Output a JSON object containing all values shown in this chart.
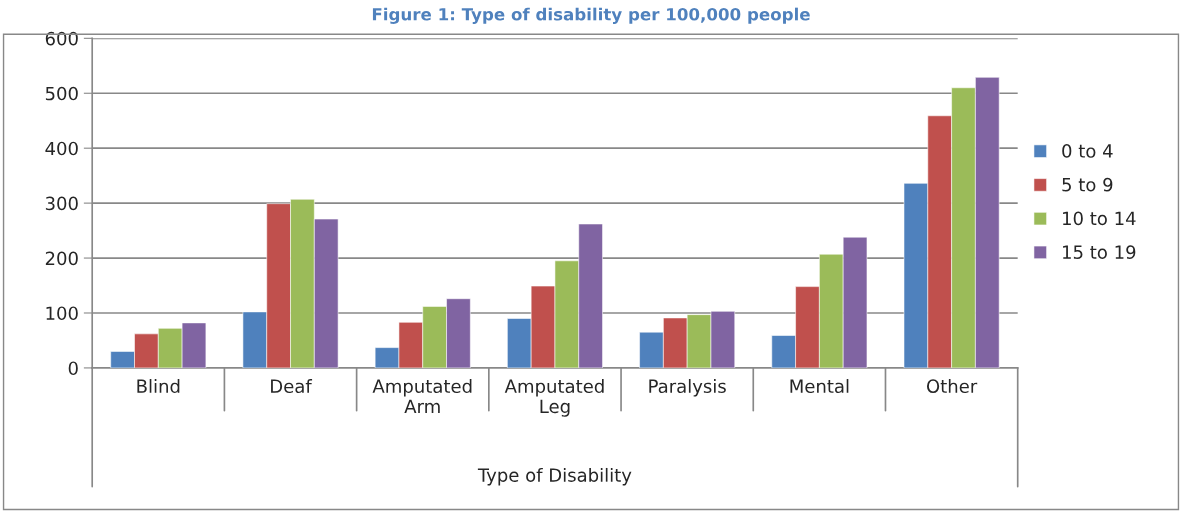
{
  "chart_data": {
    "type": "bar",
    "title": "Figure 1: Type of disability per 100,000 people",
    "xlabel": "Type of Disability",
    "categories": [
      "Blind",
      "Deaf",
      "Amputated Arm",
      "Amputated Leg",
      "Paralysis",
      "Mental",
      "Other"
    ],
    "series": [
      {
        "name": "0 to 4",
        "color": "#4f81bd",
        "values": [
          30,
          102,
          37,
          90,
          65,
          59,
          336
        ]
      },
      {
        "name": "5 to 9",
        "color": "#c0504d",
        "values": [
          62,
          299,
          83,
          149,
          91,
          148,
          459
        ]
      },
      {
        "name": "10 to 14",
        "color": "#9bbb59",
        "values": [
          72,
          307,
          112,
          195,
          97,
          207,
          510
        ]
      },
      {
        "name": "15 to 19",
        "color": "#8064a2",
        "values": [
          82,
          271,
          126,
          262,
          103,
          238,
          529
        ]
      }
    ],
    "ylim": [
      0,
      600
    ],
    "yticks": [
      0,
      100,
      200,
      300,
      400,
      500,
      600
    ],
    "grid": "y",
    "legend": "right"
  }
}
